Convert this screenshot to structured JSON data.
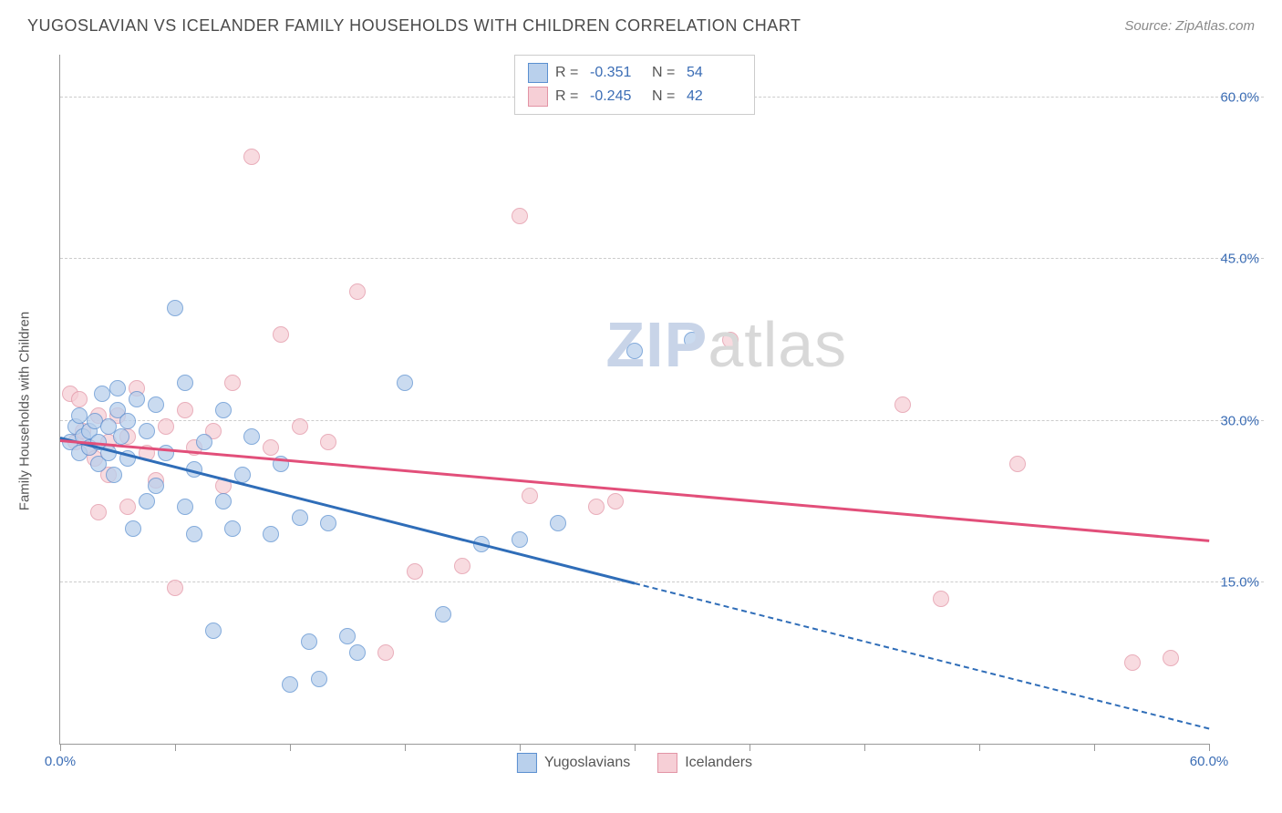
{
  "header": {
    "title": "YUGOSLAVIAN VS ICELANDER FAMILY HOUSEHOLDS WITH CHILDREN CORRELATION CHART",
    "source_prefix": "Source: ",
    "source_name": "ZipAtlas.com"
  },
  "chart": {
    "type": "scatter",
    "ylabel": "Family Households with Children",
    "xlim": [
      0,
      60
    ],
    "ylim": [
      0,
      64
    ],
    "xtick_positions": [
      0,
      6,
      12,
      18,
      24,
      30,
      36,
      42,
      48,
      54,
      60
    ],
    "xtick_labels": {
      "0": "0.0%",
      "60": "60.0%"
    },
    "ytick_positions": [
      15,
      30,
      45,
      60
    ],
    "ytick_labels": {
      "15": "15.0%",
      "30": "30.0%",
      "45": "45.0%",
      "60": "60.0%"
    },
    "grid_color": "#cccccc",
    "axis_color": "#999999",
    "background_color": "#ffffff",
    "tick_label_color": "#3b6db5",
    "tick_label_fontsize": 15,
    "axis_label_color": "#555555",
    "axis_label_fontsize": 15,
    "marker_size": 18,
    "marker_opacity": 0.75,
    "watermark": {
      "text_bold": "ZIP",
      "text_light": "atlas",
      "color_bold": "#c8d4e8",
      "color_light": "#d8d8d8",
      "fontsize": 70
    }
  },
  "series": {
    "yugoslavians": {
      "label": "Yugoslavians",
      "fill_color": "#b9d0ec",
      "stroke_color": "#5a8fd0",
      "trend_color": "#2f6db8",
      "trend": {
        "x1": 0,
        "y1": 28.5,
        "x2": 30,
        "y2": 15.0,
        "x2_ext": 60,
        "y2_ext": 1.5
      },
      "R": "-0.351",
      "N": "54",
      "points": [
        [
          0.5,
          28.0
        ],
        [
          0.8,
          29.5
        ],
        [
          1.0,
          27.0
        ],
        [
          1.0,
          30.5
        ],
        [
          1.2,
          28.5
        ],
        [
          1.5,
          27.5
        ],
        [
          1.5,
          29.0
        ],
        [
          1.8,
          30.0
        ],
        [
          2.0,
          26.0
        ],
        [
          2.0,
          28.0
        ],
        [
          2.2,
          32.5
        ],
        [
          2.5,
          27.0
        ],
        [
          2.5,
          29.5
        ],
        [
          2.8,
          25.0
        ],
        [
          3.0,
          31.0
        ],
        [
          3.0,
          33.0
        ],
        [
          3.2,
          28.5
        ],
        [
          3.5,
          26.5
        ],
        [
          3.5,
          30.0
        ],
        [
          3.8,
          20.0
        ],
        [
          4.0,
          32.0
        ],
        [
          4.5,
          22.5
        ],
        [
          4.5,
          29.0
        ],
        [
          5.0,
          24.0
        ],
        [
          5.0,
          31.5
        ],
        [
          5.5,
          27.0
        ],
        [
          6.0,
          40.5
        ],
        [
          6.5,
          22.0
        ],
        [
          6.5,
          33.5
        ],
        [
          7.0,
          19.5
        ],
        [
          7.0,
          25.5
        ],
        [
          7.5,
          28.0
        ],
        [
          8.0,
          10.5
        ],
        [
          8.5,
          22.5
        ],
        [
          8.5,
          31.0
        ],
        [
          9.0,
          20.0
        ],
        [
          9.5,
          25.0
        ],
        [
          10.0,
          28.5
        ],
        [
          11.0,
          19.5
        ],
        [
          11.5,
          26.0
        ],
        [
          12.0,
          5.5
        ],
        [
          12.5,
          21.0
        ],
        [
          13.0,
          9.5
        ],
        [
          13.5,
          6.0
        ],
        [
          14.0,
          20.5
        ],
        [
          15.0,
          10.0
        ],
        [
          15.5,
          8.5
        ],
        [
          18.0,
          33.5
        ],
        [
          20.0,
          12.0
        ],
        [
          22.0,
          18.5
        ],
        [
          24.0,
          19.0
        ],
        [
          26.0,
          20.5
        ],
        [
          30.0,
          36.5
        ],
        [
          33.0,
          37.5
        ]
      ]
    },
    "icelanders": {
      "label": "Icelanders",
      "fill_color": "#f6cfd6",
      "stroke_color": "#e294a5",
      "trend_color": "#e24f7a",
      "trend": {
        "x1": 0,
        "y1": 28.3,
        "x2": 60,
        "y2": 19.0
      },
      "R": "-0.245",
      "N": "42",
      "points": [
        [
          0.5,
          32.5
        ],
        [
          0.8,
          28.0
        ],
        [
          1.0,
          32.0
        ],
        [
          1.2,
          29.0
        ],
        [
          1.5,
          27.5
        ],
        [
          1.8,
          26.5
        ],
        [
          2.0,
          21.5
        ],
        [
          2.0,
          30.5
        ],
        [
          2.5,
          28.0
        ],
        [
          2.5,
          25.0
        ],
        [
          3.0,
          30.5
        ],
        [
          3.5,
          28.5
        ],
        [
          3.5,
          22.0
        ],
        [
          4.0,
          33.0
        ],
        [
          4.5,
          27.0
        ],
        [
          5.0,
          24.5
        ],
        [
          5.5,
          29.5
        ],
        [
          6.0,
          14.5
        ],
        [
          6.5,
          31.0
        ],
        [
          7.0,
          27.5
        ],
        [
          8.0,
          29.0
        ],
        [
          8.5,
          24.0
        ],
        [
          9.0,
          33.5
        ],
        [
          10.0,
          54.5
        ],
        [
          11.0,
          27.5
        ],
        [
          11.5,
          38.0
        ],
        [
          12.5,
          29.5
        ],
        [
          14.0,
          28.0
        ],
        [
          15.5,
          42.0
        ],
        [
          17.0,
          8.5
        ],
        [
          18.5,
          16.0
        ],
        [
          21.0,
          16.5
        ],
        [
          24.0,
          49.0
        ],
        [
          24.5,
          23.0
        ],
        [
          28.0,
          22.0
        ],
        [
          29.0,
          22.5
        ],
        [
          35.0,
          37.5
        ],
        [
          44.0,
          31.5
        ],
        [
          46.0,
          13.5
        ],
        [
          50.0,
          26.0
        ],
        [
          56.0,
          7.5
        ],
        [
          58.0,
          8.0
        ]
      ]
    }
  },
  "legend_top": {
    "r_label": "R =",
    "n_label": "N ="
  }
}
